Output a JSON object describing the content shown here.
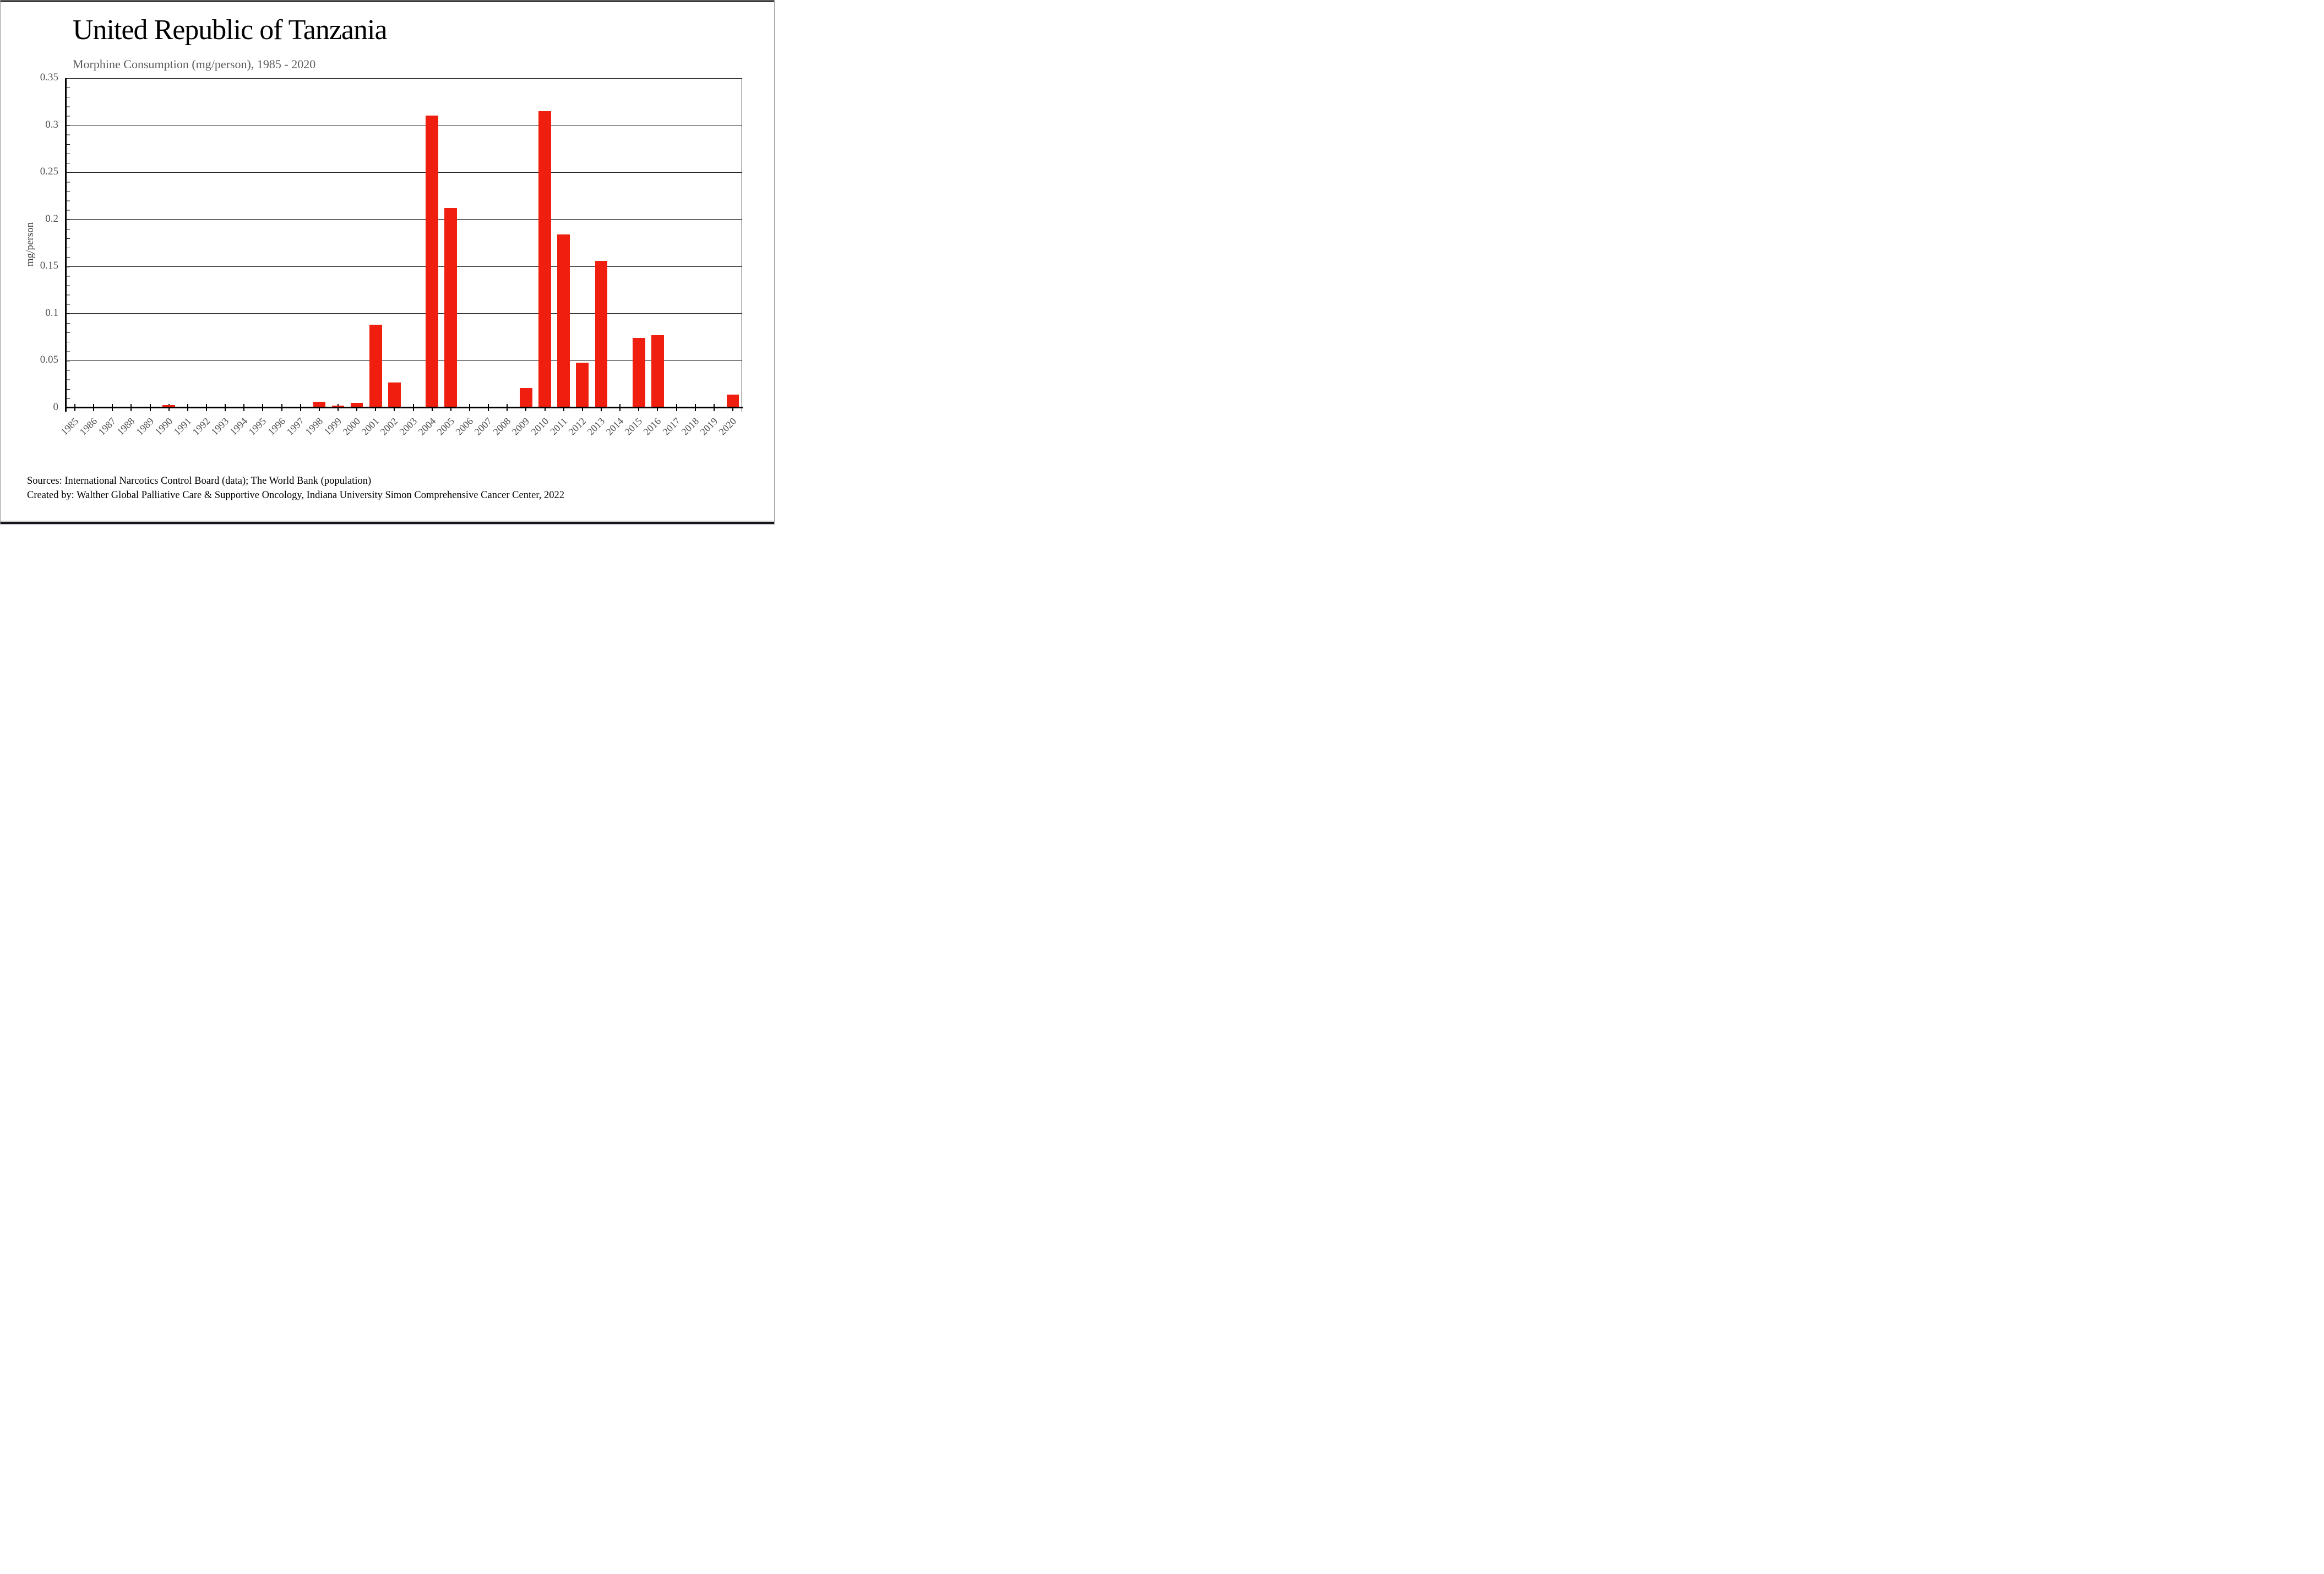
{
  "window": {
    "background": "#ffffff",
    "frame_border_color": "#9b9b9b",
    "top_line_color": "#000000",
    "bottom_strip_color": "#d9d9d9",
    "bottom_bar_color": "#16161f"
  },
  "header": {
    "title": "United Republic of Tanzania",
    "subtitle": "Morphine Consumption (mg/person), 1985 - 2020"
  },
  "footer": {
    "line1": "Sources: International Narcotics Control Board (data); The World Bank (population)",
    "line2": "Created by: Walther Global Palliative Care & Supportive Oncology, Indiana University Simon Comprehensive Cancer Center, 2022"
  },
  "chart_data": {
    "type": "bar",
    "title": "United Republic of Tanzania",
    "subtitle": "Morphine Consumption (mg/person), 1985 - 2020",
    "xlabel": "",
    "ylabel": "mg/person",
    "ylim": [
      0,
      0.35
    ],
    "ytick_step": 0.05,
    "minor_tick_step": 0.01,
    "grid": "horizontal-major",
    "legend": "none",
    "bar_color": "#F01E0F",
    "axis_color": "#000000",
    "tick_label_color": "#4f4f4f",
    "categories": [
      1985,
      1986,
      1987,
      1988,
      1989,
      1990,
      1991,
      1992,
      1993,
      1994,
      1995,
      1996,
      1997,
      1998,
      1999,
      2000,
      2001,
      2002,
      2003,
      2004,
      2005,
      2006,
      2007,
      2008,
      2009,
      2010,
      2011,
      2012,
      2013,
      2014,
      2015,
      2016,
      2017,
      2018,
      2019,
      2020
    ],
    "values": [
      0,
      0,
      0,
      0,
      0,
      0.002,
      0,
      0,
      0,
      0,
      0,
      0,
      0,
      0.005,
      0.001,
      0.004,
      0.087,
      0.026,
      0,
      0.309,
      0.211,
      0,
      0,
      0,
      0.02,
      0.314,
      0.183,
      0.047,
      0.155,
      0,
      0.073,
      0.076,
      0,
      0,
      0,
      0.013
    ]
  }
}
